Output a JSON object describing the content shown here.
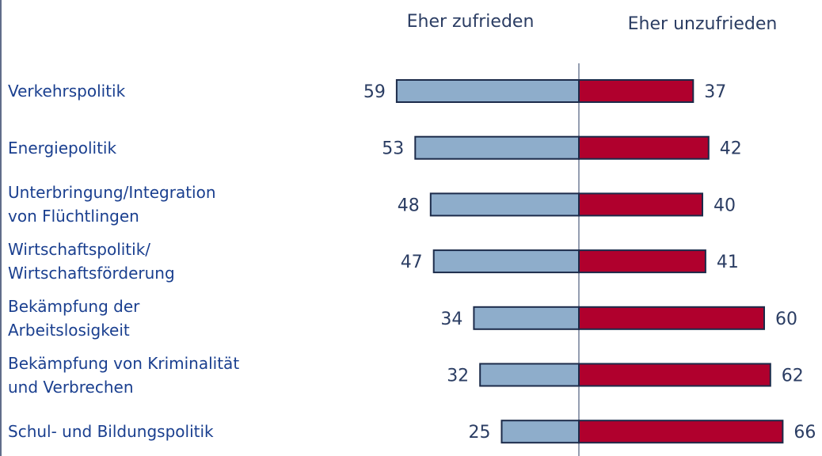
{
  "chart_data": {
    "type": "diverging-bar",
    "categories": [
      "Verkehrspolitik",
      "Energiepolitik",
      "Unterbringung/Integration\nvon Flüchtlingen",
      "Wirtschaftspolitik/\nWirtschaftsförderung",
      "Bekämpfung der\nArbeitslosigkeit",
      "Bekämpfung von Kriminalität\nund Verbrechen",
      "Schul- und Bildungspolitik"
    ],
    "series": [
      {
        "name": "Eher zufrieden",
        "color": "#8eadcb",
        "values": [
          59,
          53,
          48,
          47,
          34,
          32,
          25
        ]
      },
      {
        "name": "Eher unzufrieden",
        "color": "#b0002d",
        "values": [
          37,
          42,
          40,
          41,
          60,
          62,
          66
        ]
      }
    ]
  }
}
